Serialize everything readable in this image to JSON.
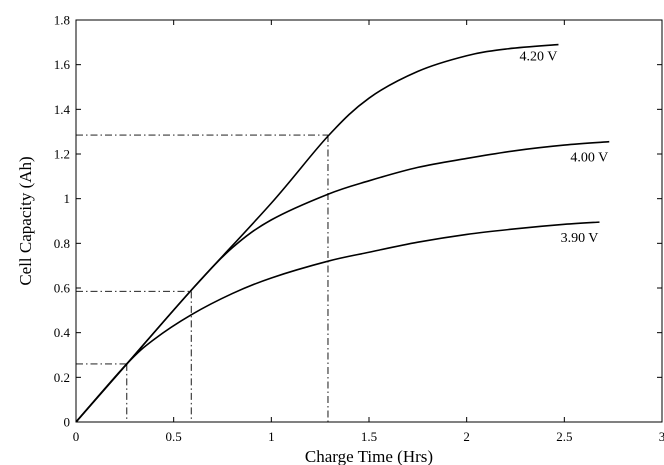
{
  "chart_data": {
    "type": "line",
    "title": "",
    "xlabel": "Charge Time (Hrs)",
    "ylabel": "Cell Capacity (Ah)",
    "xlim": [
      0,
      3
    ],
    "ylim": [
      0,
      1.8
    ],
    "xticks": [
      0,
      0.5,
      1,
      1.5,
      2,
      2.5,
      3
    ],
    "xtick_labels": [
      "0",
      "0.5",
      "1",
      "1.5",
      "2",
      "2.5",
      "3"
    ],
    "yticks": [
      0,
      0.2,
      0.4,
      0.6,
      0.8,
      1,
      1.2,
      1.4,
      1.6,
      1.8
    ],
    "ytick_labels": [
      "0",
      "0.2",
      "0.4",
      "0.6",
      "0.8",
      "1",
      "1.2",
      "1.4",
      "1.6",
      "1.8"
    ],
    "grid": false,
    "series": [
      {
        "name": "4.20 V",
        "x": [
          0,
          0.26,
          0.59,
          1.0,
          1.29,
          1.5,
          1.75,
          2.0,
          2.2,
          2.47
        ],
        "y": [
          0,
          0.26,
          0.59,
          0.98,
          1.28,
          1.45,
          1.57,
          1.64,
          1.67,
          1.69
        ]
      },
      {
        "name": "4.00 V",
        "x": [
          0,
          0.26,
          0.59,
          0.8,
          1.0,
          1.29,
          1.5,
          1.75,
          2.0,
          2.25,
          2.5,
          2.73
        ],
        "y": [
          0,
          0.26,
          0.59,
          0.78,
          0.905,
          1.02,
          1.08,
          1.14,
          1.18,
          1.215,
          1.24,
          1.255
        ]
      },
      {
        "name": "3.90 V",
        "x": [
          0,
          0.26,
          0.4,
          0.59,
          0.8,
          1.0,
          1.29,
          1.5,
          1.75,
          2.0,
          2.25,
          2.5,
          2.68
        ],
        "y": [
          0,
          0.26,
          0.37,
          0.48,
          0.575,
          0.645,
          0.72,
          0.76,
          0.805,
          0.84,
          0.865,
          0.885,
          0.895
        ]
      }
    ],
    "reference_lines": [
      {
        "x": 0.26,
        "y": 0.26
      },
      {
        "x": 0.59,
        "y": 0.585
      },
      {
        "x": 1.29,
        "y": 1.285
      }
    ],
    "line_color": "#000000"
  }
}
